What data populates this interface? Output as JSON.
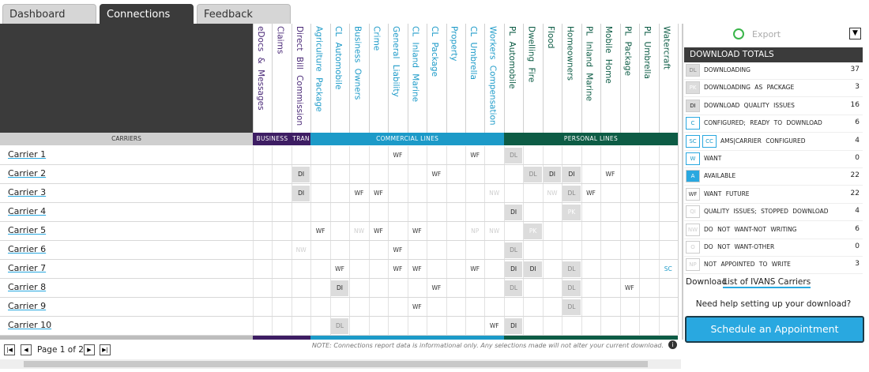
{
  "tabs": [
    "Dashboard",
    "Connections",
    "Feedback"
  ],
  "active_tab": 1,
  "table": {
    "carriers_header": "CARRIERS",
    "groups": [
      {
        "label": "BUSINESS",
        "color": "#3d1d63",
        "text_color": "#4b2a78",
        "columns": [
          "eDocs & Messages",
          "Claims"
        ]
      },
      {
        "label": "TRAN",
        "color": "#3d1d63",
        "text_color": "#4b2a78",
        "columns": [
          "Direct Bill Commission"
        ]
      },
      {
        "label": "COMMERCIAL LINES",
        "color": "#1c9ac8",
        "text_color": "#1c9ac8",
        "columns": [
          "Agriculture Package",
          "CL Automobile",
          "Business Owners",
          "Crime",
          "General Liability",
          "CL Inland Marine",
          "CL Package",
          "Property",
          "CL Umbrella",
          "Workers Compensation"
        ]
      },
      {
        "label": "PERSONAL LINES",
        "color": "#0d5c45",
        "text_color": "#0d5c45",
        "columns": [
          "PL Automobile",
          "Dwelling Fire",
          "Flood",
          "Homeowners",
          "PL Inland Marine",
          "Mobile Home",
          "PL Package",
          "PL Umbrella",
          "Watercraft"
        ]
      }
    ],
    "rows": [
      {
        "name": "Carrier 1",
        "cells": [
          null,
          null,
          null,
          null,
          null,
          null,
          null,
          "WF",
          null,
          null,
          null,
          "WF",
          null,
          "DL",
          null,
          null,
          null,
          null,
          null,
          null,
          null,
          null
        ]
      },
      {
        "name": "Carrier 2",
        "cells": [
          null,
          null,
          "DI",
          null,
          null,
          null,
          null,
          null,
          null,
          "WF",
          null,
          null,
          null,
          null,
          "DL",
          "DI",
          "DI",
          null,
          "WF",
          null,
          null,
          null
        ]
      },
      {
        "name": "Carrier 3",
        "cells": [
          null,
          null,
          "DI",
          null,
          null,
          "WF",
          "WF",
          null,
          null,
          null,
          null,
          null,
          "NW",
          null,
          null,
          "NW",
          "DL",
          "WF",
          null,
          null,
          null,
          null
        ]
      },
      {
        "name": "Carrier 4",
        "cells": [
          null,
          null,
          null,
          null,
          null,
          null,
          null,
          null,
          null,
          null,
          null,
          null,
          null,
          "DI",
          null,
          null,
          "PK",
          null,
          null,
          null,
          null,
          null
        ]
      },
      {
        "name": "Carrier 5",
        "cells": [
          null,
          null,
          null,
          "WF",
          null,
          "NW",
          "WF",
          null,
          "WF",
          null,
          null,
          "NP",
          "NW",
          null,
          "PK",
          null,
          null,
          null,
          null,
          null,
          null,
          null
        ]
      },
      {
        "name": "Carrier 6",
        "cells": [
          null,
          null,
          "NW",
          null,
          null,
          null,
          null,
          "WF",
          null,
          null,
          null,
          null,
          null,
          "DL",
          null,
          null,
          null,
          null,
          null,
          null,
          null,
          null
        ]
      },
      {
        "name": "Carrier 7",
        "cells": [
          null,
          null,
          null,
          null,
          "WF",
          null,
          null,
          "WF",
          "WF",
          null,
          null,
          "WF",
          null,
          "DI",
          "DI",
          null,
          "DL",
          null,
          null,
          null,
          null,
          "SC"
        ]
      },
      {
        "name": "Carrier 8",
        "cells": [
          null,
          null,
          null,
          null,
          "DI",
          null,
          null,
          null,
          null,
          "WF",
          null,
          null,
          null,
          "DL",
          null,
          null,
          "DL",
          null,
          null,
          "WF",
          null,
          null
        ]
      },
      {
        "name": "Carrier 9",
        "cells": [
          null,
          null,
          null,
          null,
          null,
          null,
          null,
          null,
          "WF",
          null,
          null,
          null,
          null,
          null,
          null,
          null,
          "DL",
          null,
          null,
          null,
          null,
          null
        ]
      },
      {
        "name": "Carrier 10",
        "cells": [
          null,
          null,
          null,
          null,
          "DL",
          null,
          null,
          null,
          null,
          null,
          null,
          null,
          "WF",
          "DI",
          null,
          null,
          null,
          null,
          null,
          null,
          null,
          null
        ]
      }
    ]
  },
  "pager": "Page 1 of 2",
  "note": "NOTE: Connections report data is informational only. Any selections made will not alter your current download.",
  "panel": {
    "export": "Export",
    "totals_title": "DOWNLOAD TOTALS",
    "totals": [
      {
        "codes": [
          "DL"
        ],
        "label": "DOWNLOADING",
        "count": 37,
        "style": "grey"
      },
      {
        "codes": [
          "PK"
        ],
        "label": "DOWNLOADING AS PACKAGE",
        "count": 3,
        "style": "grey-faint"
      },
      {
        "codes": [
          "DI"
        ],
        "label": "DOWNLOAD QUALITY ISSUES",
        "count": 16,
        "style": "grey-dark"
      },
      {
        "codes": [
          "C"
        ],
        "label": "CONFIGURED; READY TO DOWNLOAD",
        "count": 6,
        "style": "blue"
      },
      {
        "codes": [
          "SC",
          "CC"
        ],
        "label": "AMS|CARRIER CONFIGURED",
        "count": 4,
        "style": "blue"
      },
      {
        "codes": [
          "W"
        ],
        "label": "WANT",
        "count": 0,
        "style": "blue"
      },
      {
        "codes": [
          "A"
        ],
        "label": "AVAILABLE",
        "count": 22,
        "style": "blue-fill"
      },
      {
        "codes": [
          "WF"
        ],
        "label": "WANT FUTURE",
        "count": 22,
        "style": "plain"
      },
      {
        "codes": [
          "QI"
        ],
        "label": "QUALITY ISSUES; STOPPED DOWNLOAD",
        "count": 4,
        "style": "faint"
      },
      {
        "codes": [
          "NW"
        ],
        "label": "DO NOT WANT-NOT WRITING",
        "count": 6,
        "style": "faint"
      },
      {
        "codes": [
          "O"
        ],
        "label": "DO NOT WANT-OTHER",
        "count": 0,
        "style": "faint"
      },
      {
        "codes": [
          "NP"
        ],
        "label": "NOT APPOINTED TO WRITE",
        "count": 3,
        "style": "faint"
      }
    ],
    "download_prefix": "Download",
    "download_link": "List of IVANS Carriers",
    "help": "Need help setting up your download?",
    "button": "Schedule an Appointment"
  }
}
